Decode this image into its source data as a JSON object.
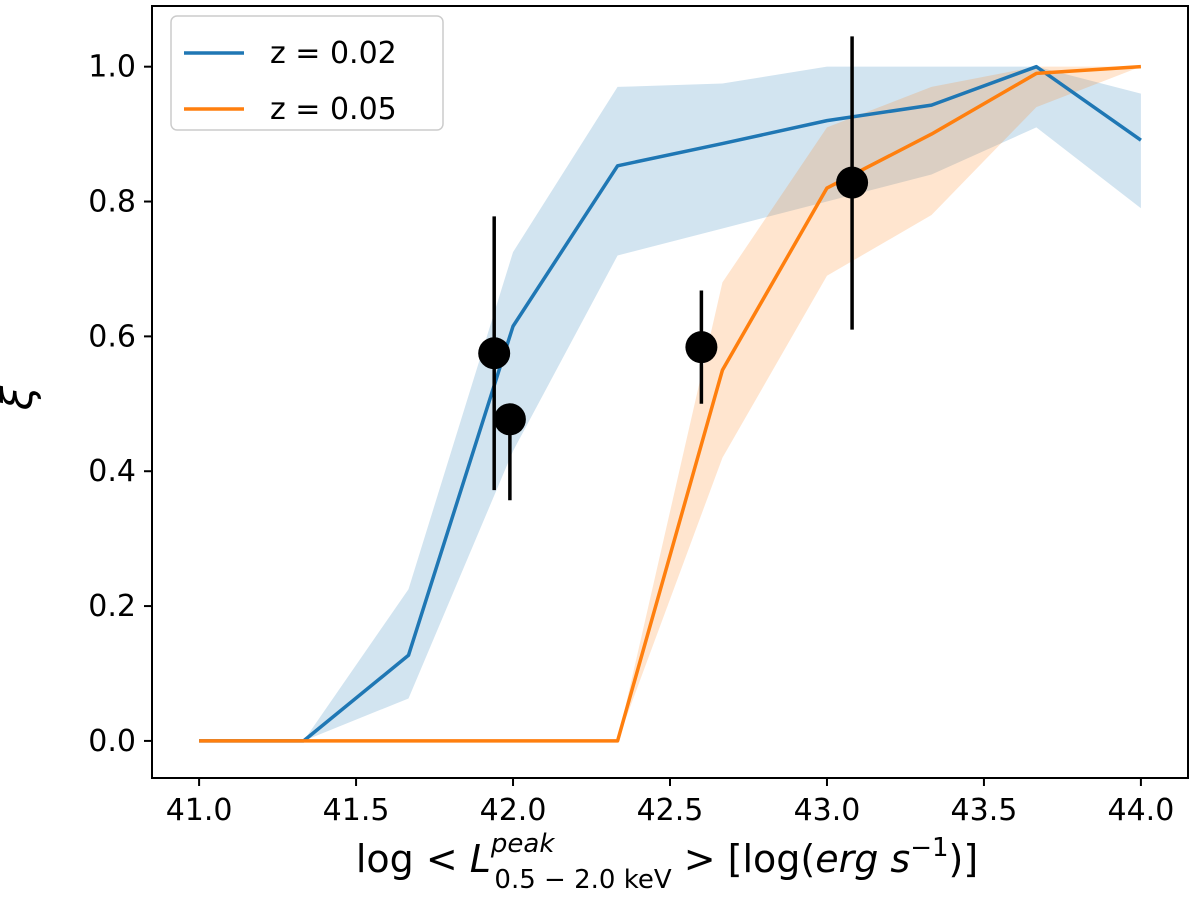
{
  "chart_data": {
    "type": "line",
    "xlabel_parts": {
      "prefix": "log <",
      "symbol": "L",
      "superscript": "peak",
      "subscript": "0.5 − 2.0 keV",
      "suffix": ">  [log(",
      "unit_italic": "erg s",
      "unit_exp": "−1",
      "close": ")]"
    },
    "ylabel": "ξ",
    "xlim": [
      40.85,
      44.15
    ],
    "ylim": [
      -0.055,
      1.09
    ],
    "xticks": [
      41.0,
      41.5,
      42.0,
      42.5,
      43.0,
      43.5,
      44.0
    ],
    "xtick_labels": [
      "41.0",
      "41.5",
      "42.0",
      "42.5",
      "43.0",
      "43.5",
      "44.0"
    ],
    "yticks": [
      0.0,
      0.2,
      0.4,
      0.6,
      0.8,
      1.0
    ],
    "ytick_labels": [
      "0.0",
      "0.2",
      "0.4",
      "0.6",
      "0.8",
      "1.0"
    ],
    "grid": false,
    "legend_position": "top-left",
    "series": [
      {
        "name": "z = 0.02",
        "color": "#1f77b4",
        "band_color": "#1f77b4",
        "x": [
          41.0,
          41.333,
          41.667,
          42.0,
          42.333,
          42.667,
          43.0,
          43.333,
          43.667,
          44.0
        ],
        "y": [
          0.0,
          0.0,
          0.127,
          0.615,
          0.853,
          0.886,
          0.92,
          0.943,
          1.0,
          0.891
        ],
        "lower": [
          0.0,
          0.0,
          0.063,
          0.43,
          0.72,
          0.76,
          0.8,
          0.84,
          0.91,
          0.79
        ],
        "upper": [
          0.0,
          0.0,
          0.225,
          0.725,
          0.97,
          0.975,
          1.0,
          1.0,
          1.0,
          0.96
        ]
      },
      {
        "name": "z = 0.05",
        "color": "#ff7f0e",
        "band_color": "#ff7f0e",
        "x": [
          41.0,
          41.333,
          41.667,
          42.0,
          42.333,
          42.667,
          43.0,
          43.333,
          43.667,
          44.0
        ],
        "y": [
          0.0,
          0.0,
          0.0,
          0.0,
          0.0,
          0.55,
          0.82,
          0.9,
          0.99,
          1.0
        ],
        "lower": [
          0.0,
          0.0,
          0.0,
          0.0,
          0.0,
          0.42,
          0.69,
          0.78,
          0.94,
          1.0
        ],
        "upper": [
          0.0,
          0.0,
          0.0,
          0.0,
          0.0,
          0.68,
          0.91,
          0.97,
          1.0,
          1.0
        ]
      }
    ],
    "points": {
      "color": "#000000",
      "x": [
        41.94,
        41.99,
        42.6,
        43.08
      ],
      "y": [
        0.575,
        0.477,
        0.584,
        0.828
      ],
      "yerr_low": [
        0.372,
        0.357,
        0.5,
        0.61
      ],
      "yerr_high": [
        0.778,
        0.475,
        0.668,
        1.045
      ]
    }
  }
}
